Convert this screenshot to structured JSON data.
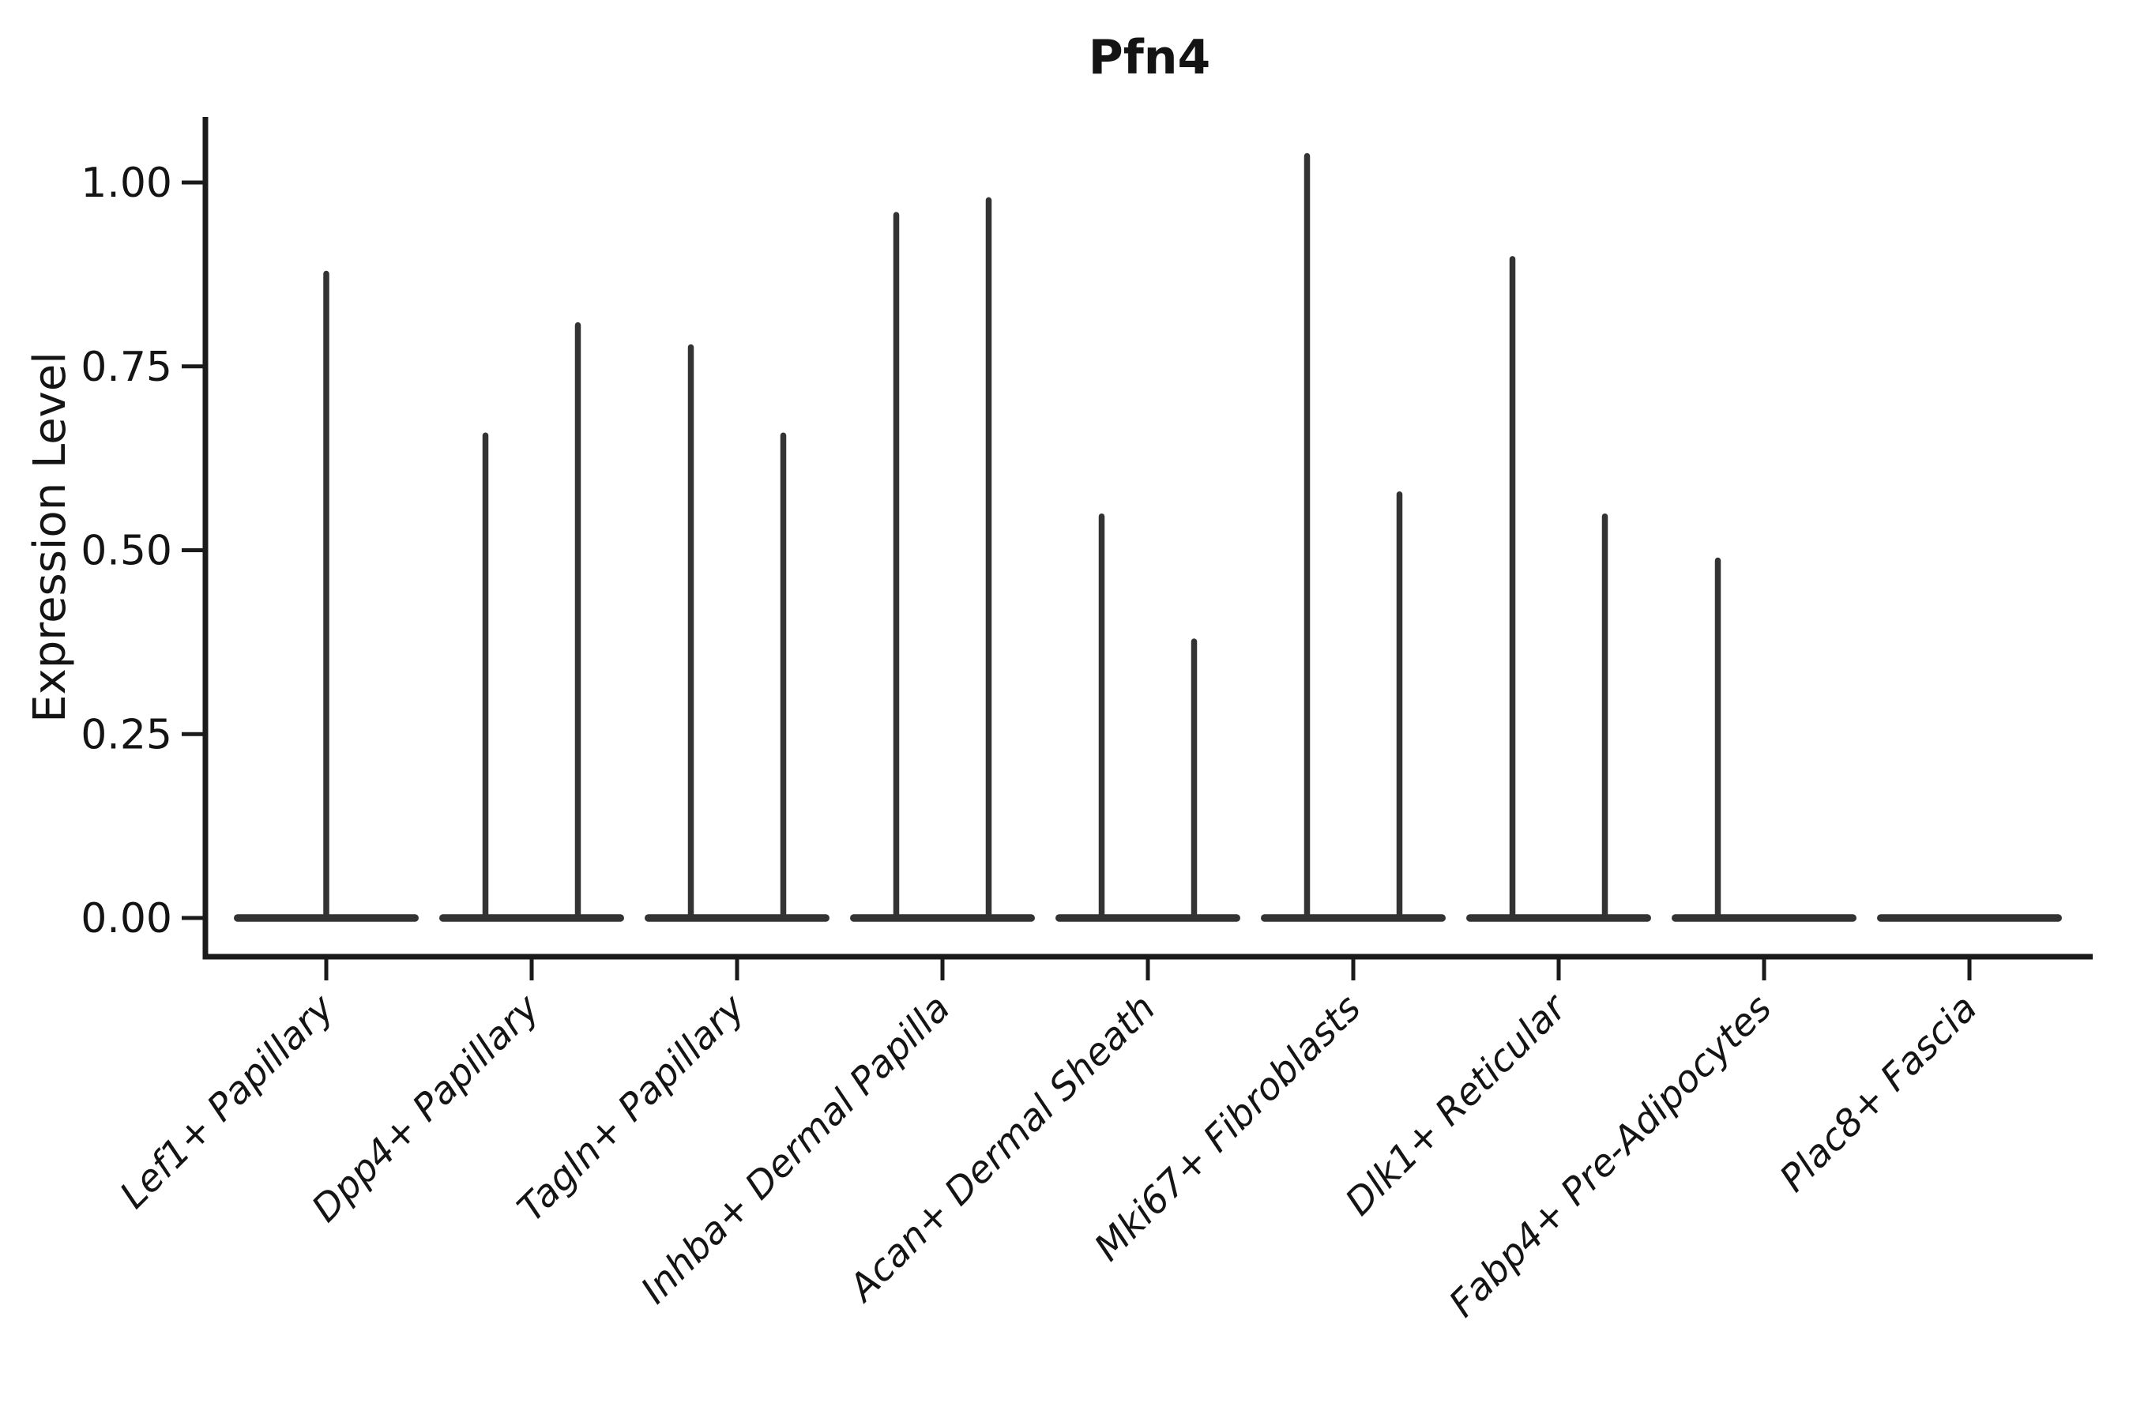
{
  "title": "Pfn4",
  "axes": {
    "ylabel": "Expression Level",
    "ytick_labels": [
      "0.00",
      "0.25",
      "0.50",
      "0.75",
      "1.00"
    ]
  },
  "colors": {
    "text": "#141414",
    "axis": "#1a1a1a",
    "violin": "#333333"
  },
  "chart_data": {
    "type": "violin",
    "title": "Pfn4",
    "xlabel": "",
    "ylabel": "Expression Level",
    "ylim": [
      -0.05,
      1.09
    ],
    "yticks": [
      0,
      0.25,
      0.5,
      0.75,
      1.0
    ],
    "ytick_labels": [
      "0.00",
      "0.25",
      "0.50",
      "0.75",
      "1.00"
    ],
    "grid": false,
    "legend": null,
    "baseline_value": 0,
    "description": "Seurat-style violin plot of Pfn4 expression; most cells are zero so each violin collapses to a flat band at 0 with a thin density spike reaching the maximum expression value. Several categories contain two side-by-side (dodged) violins.",
    "categories": [
      "Lef1+ Papillary",
      "Dpp4+ Papillary",
      "Tagln+ Papillary",
      "Inhba+ Dermal Papilla",
      "Acan+ Dermal Sheath",
      "Mki67+ Fibroblasts",
      "Dlk1+ Reticular",
      "Fabp4+ Pre-Adipocytes",
      "Plac8+ Fascia"
    ],
    "violins": [
      {
        "category": "Lef1+ Papillary",
        "spikes": [
          {
            "side": "center",
            "max": 0.88
          }
        ]
      },
      {
        "category": "Dpp4+ Papillary",
        "spikes": [
          {
            "side": "left",
            "max": 0.66
          },
          {
            "side": "right",
            "max": 0.81
          }
        ]
      },
      {
        "category": "Tagln+ Papillary",
        "spikes": [
          {
            "side": "left",
            "max": 0.78
          },
          {
            "side": "right",
            "max": 0.66
          }
        ]
      },
      {
        "category": "Inhba+ Dermal Papilla",
        "spikes": [
          {
            "side": "left",
            "max": 0.96
          },
          {
            "side": "right",
            "max": 0.98
          }
        ]
      },
      {
        "category": "Acan+ Dermal Sheath",
        "spikes": [
          {
            "side": "left",
            "max": 0.55
          },
          {
            "side": "right",
            "max": 0.38
          }
        ]
      },
      {
        "category": "Mki67+ Fibroblasts",
        "spikes": [
          {
            "side": "left",
            "max": 1.04
          },
          {
            "side": "right",
            "max": 0.58
          }
        ]
      },
      {
        "category": "Dlk1+ Reticular",
        "spikes": [
          {
            "side": "left",
            "max": 0.9
          },
          {
            "side": "right",
            "max": 0.55
          }
        ]
      },
      {
        "category": "Fabp4+ Pre-Adipocytes",
        "spikes": [
          {
            "side": "left",
            "max": 0.49
          }
        ]
      },
      {
        "category": "Plac8+ Fascia",
        "spikes": []
      }
    ]
  }
}
